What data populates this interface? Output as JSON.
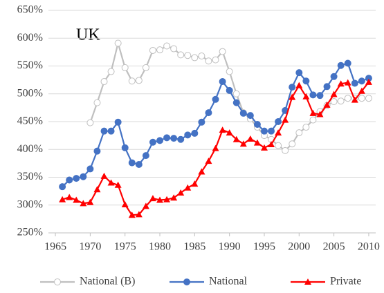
{
  "chart_data": {
    "type": "line",
    "annotation": "UK",
    "x": [
      1966,
      1967,
      1968,
      1969,
      1970,
      1971,
      1972,
      1973,
      1974,
      1975,
      1976,
      1977,
      1978,
      1979,
      1980,
      1981,
      1982,
      1983,
      1984,
      1985,
      1986,
      1987,
      1988,
      1989,
      1990,
      1991,
      1992,
      1993,
      1994,
      1995,
      1996,
      1997,
      1998,
      1999,
      2000,
      2001,
      2002,
      2003,
      2004,
      2005,
      2006,
      2007,
      2008,
      2009,
      2010
    ],
    "series": [
      {
        "name": "National (B)",
        "color": "#bfbfbf",
        "marker": "open-circle",
        "values": [
          null,
          null,
          null,
          null,
          448,
          484,
          522,
          540,
          591,
          547,
          523,
          524,
          547,
          578,
          579,
          586,
          581,
          570,
          569,
          565,
          568,
          559,
          561,
          576,
          540,
          500,
          466,
          455,
          440,
          425,
          418,
          407,
          398,
          410,
          430,
          440,
          453,
          468,
          479,
          486,
          487,
          492,
          492,
          492,
          492
        ]
      },
      {
        "name": "National",
        "color": "#4472c4",
        "marker": "circle",
        "values": [
          333,
          345,
          348,
          351,
          365,
          397,
          433,
          433,
          449,
          403,
          376,
          373,
          389,
          413,
          416,
          421,
          420,
          418,
          426,
          429,
          449,
          466,
          490,
          522,
          506,
          484,
          465,
          461,
          445,
          433,
          433,
          450,
          470,
          512,
          538,
          523,
          498,
          497,
          513,
          531,
          551,
          555,
          519,
          523,
          528
        ]
      },
      {
        "name": "Private",
        "color": "#ff0000",
        "marker": "triangle",
        "values": [
          310,
          314,
          309,
          303,
          305,
          328,
          352,
          340,
          336,
          301,
          282,
          283,
          298,
          312,
          309,
          310,
          313,
          322,
          331,
          338,
          360,
          379,
          402,
          435,
          430,
          418,
          410,
          419,
          412,
          403,
          409,
          430,
          453,
          494,
          515,
          495,
          465,
          463,
          480,
          499,
          518,
          520,
          489,
          505,
          521
        ]
      }
    ],
    "xlim": [
      1964,
      2011
    ],
    "xticks": [
      1965,
      1970,
      1975,
      1980,
      1985,
      1990,
      1995,
      2000,
      2005,
      2010
    ],
    "ylim": [
      250,
      650
    ],
    "yticks": [
      {
        "value": 250,
        "label": "250%"
      },
      {
        "value": 300,
        "label": "300%"
      },
      {
        "value": 350,
        "label": "350%"
      },
      {
        "value": 400,
        "label": "400%"
      },
      {
        "value": 450,
        "label": "450%"
      },
      {
        "value": 500,
        "label": "500%"
      },
      {
        "value": 550,
        "label": "550%"
      },
      {
        "value": 600,
        "label": "600%"
      },
      {
        "value": 650,
        "label": "650%"
      }
    ],
    "grid": true,
    "legend": "bottom"
  }
}
